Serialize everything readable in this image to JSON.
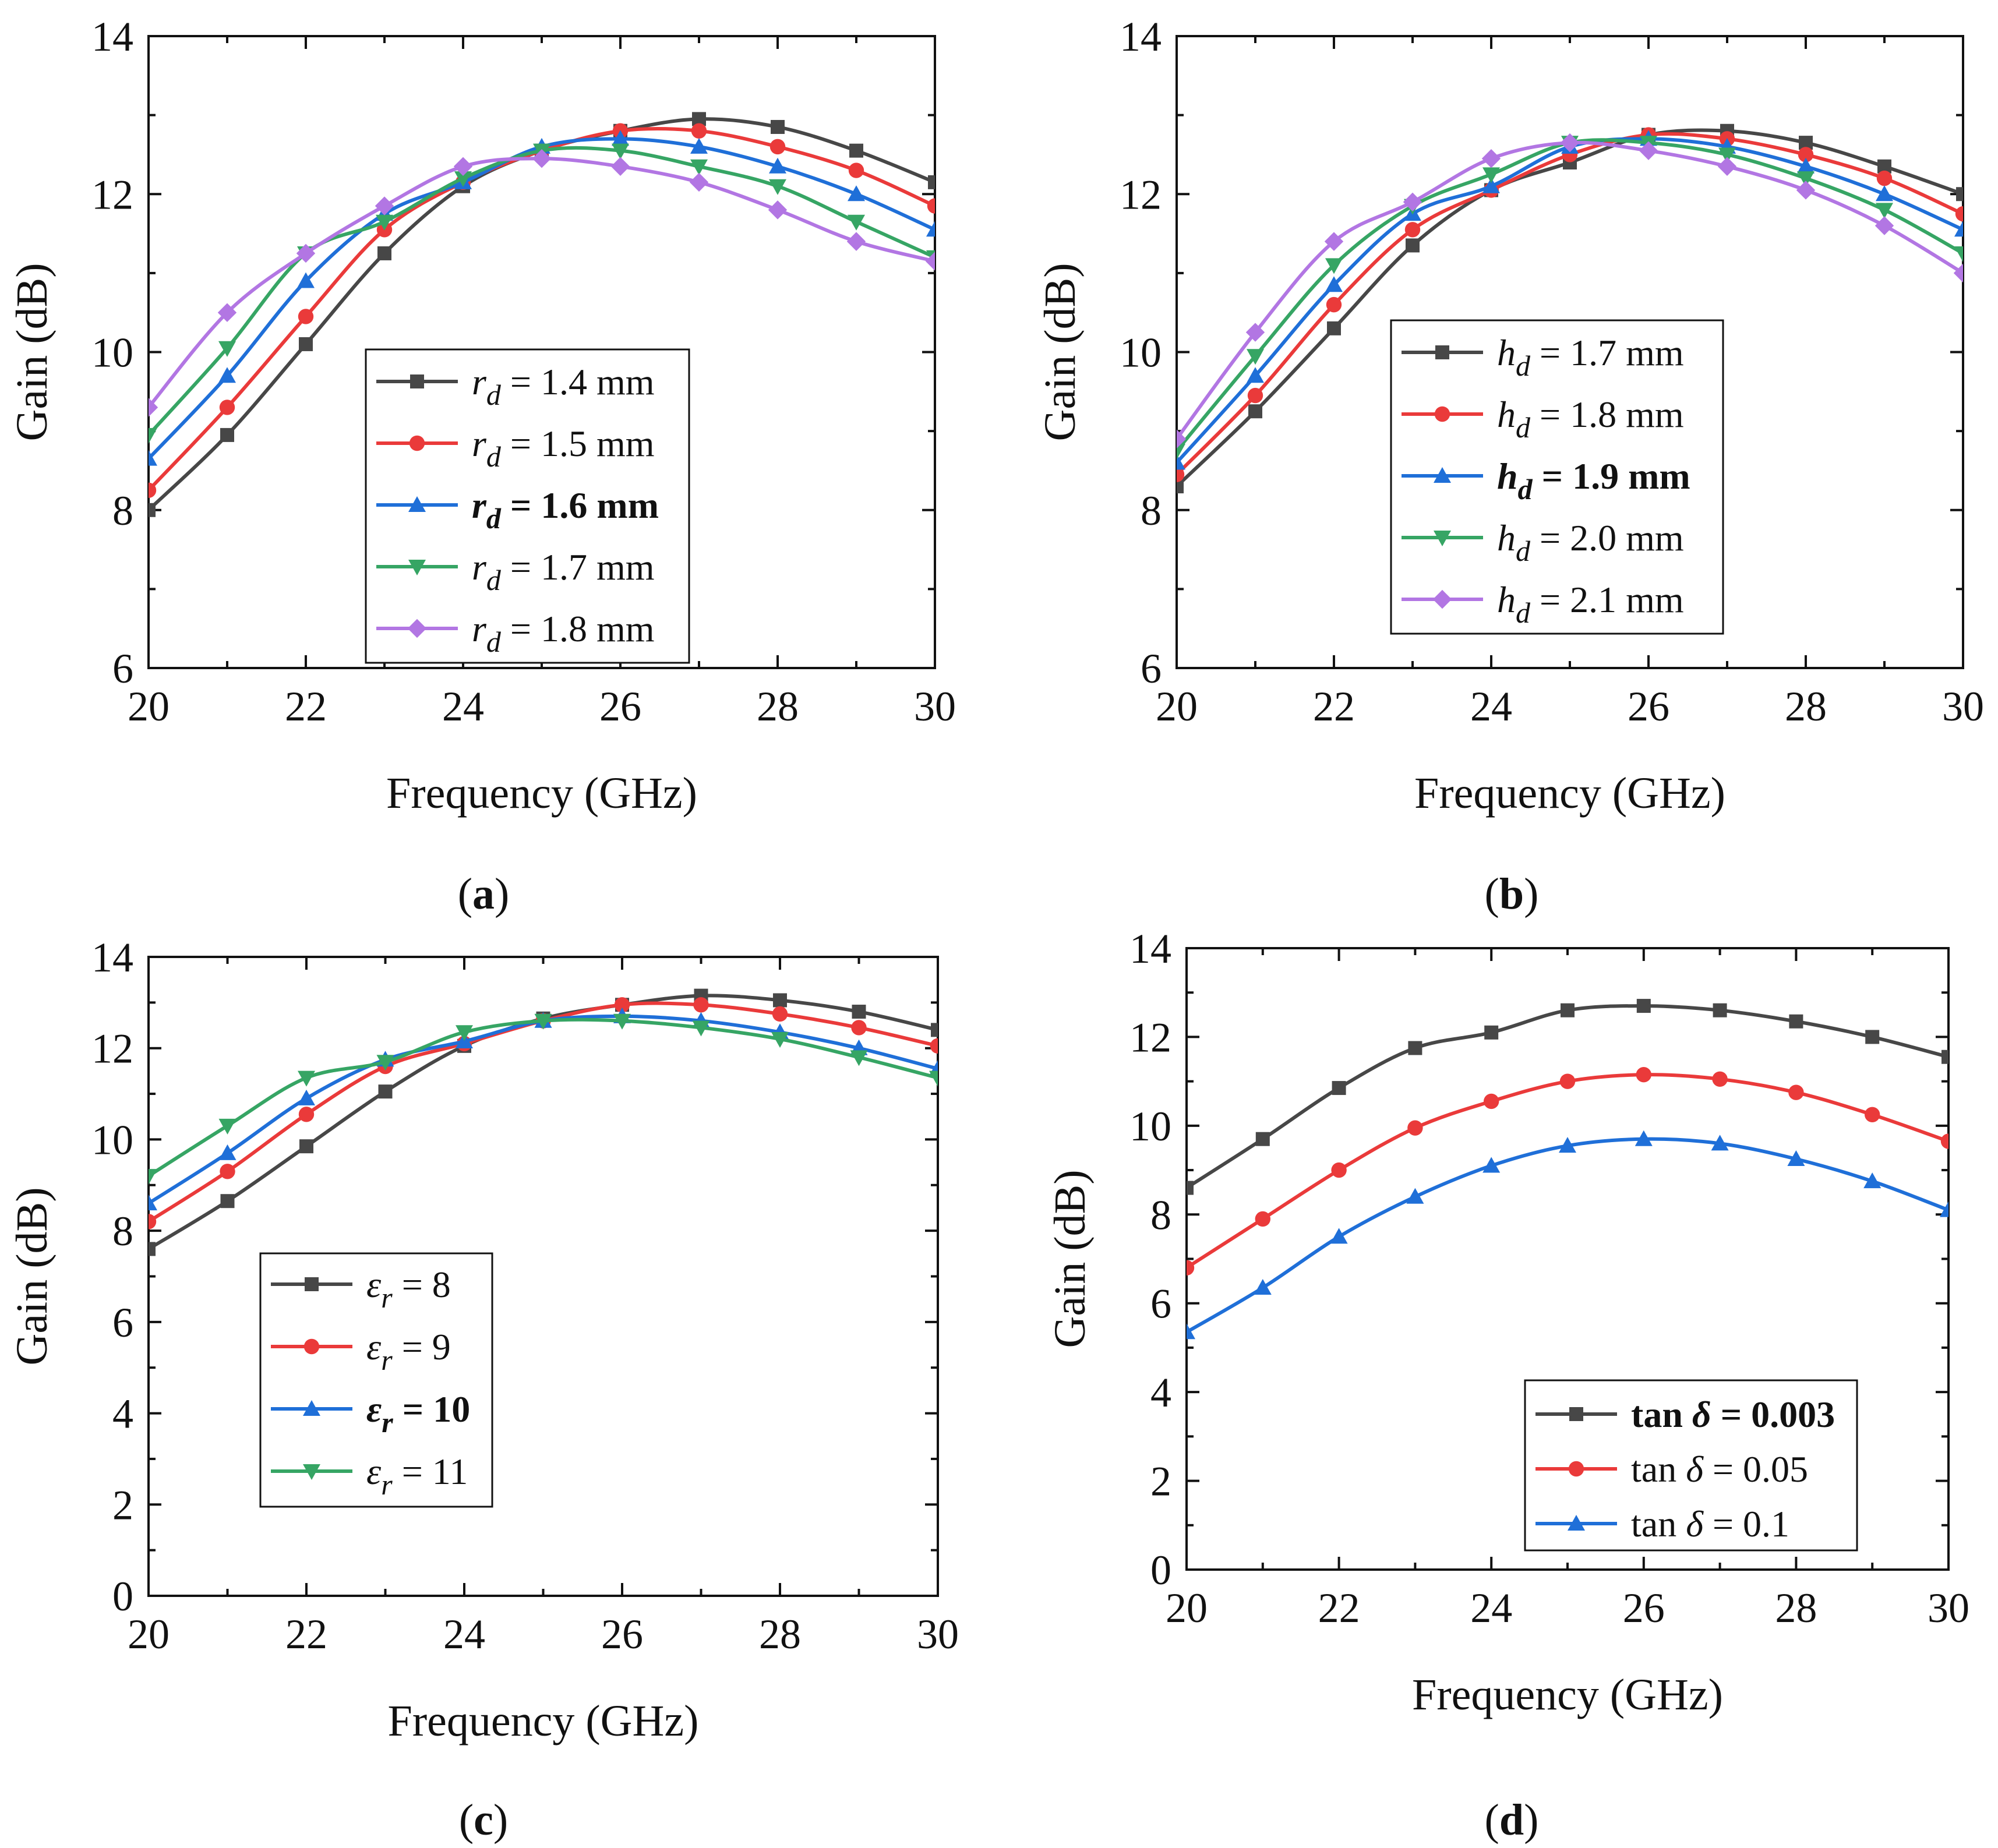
{
  "figure": {
    "panels": [
      {
        "caption_letter": "a"
      },
      {
        "caption_letter": "b"
      },
      {
        "caption_letter": "c"
      },
      {
        "caption_letter": "d"
      }
    ]
  },
  "colors": {
    "black": "#474747",
    "red": "#ea3a3a",
    "blue": "#1f6fd8",
    "green": "#36a564",
    "purple": "#b276e3",
    "frame": "#111111"
  },
  "chart_data": [
    {
      "type": "line",
      "panel": "a",
      "title": "",
      "xlabel": "Frequency (GHz)",
      "ylabel": "Gain (dB)",
      "xlim": [
        20,
        30
      ],
      "ylim": [
        6,
        14
      ],
      "xticks": [
        20,
        22,
        24,
        26,
        28,
        30
      ],
      "yticks": [
        6,
        8,
        10,
        12,
        14
      ],
      "legend_position": "center",
      "x": [
        20,
        21,
        22,
        23,
        24,
        25,
        26,
        27,
        28,
        29,
        30
      ],
      "series": [
        {
          "name": "r_d = 1.4 mm",
          "sym": "r",
          "sub": "d",
          "rest": " = 1.4 mm",
          "bold": false,
          "color": "black",
          "marker": "square",
          "values": [
            8.0,
            8.95,
            10.1,
            11.25,
            12.1,
            12.55,
            12.8,
            12.95,
            12.85,
            12.55,
            12.15
          ]
        },
        {
          "name": "r_d = 1.5 mm",
          "sym": "r",
          "sub": "d",
          "rest": " = 1.5 mm",
          "bold": false,
          "color": "red",
          "marker": "circle",
          "values": [
            8.25,
            9.3,
            10.45,
            11.55,
            12.15,
            12.55,
            12.8,
            12.8,
            12.6,
            12.3,
            11.85
          ]
        },
        {
          "name": "r_d = 1.6 mm",
          "sym": "r",
          "sub": "d",
          "rest": " = 1.6 mm",
          "bold": true,
          "color": "blue",
          "marker": "triangle-up",
          "values": [
            8.65,
            9.7,
            10.9,
            11.75,
            12.15,
            12.6,
            12.7,
            12.6,
            12.35,
            12.0,
            11.55
          ]
        },
        {
          "name": "r_d = 1.7 mm",
          "sym": "r",
          "sub": "d",
          "rest": " = 1.7 mm",
          "bold": false,
          "color": "green",
          "marker": "triangle-down",
          "values": [
            8.95,
            10.05,
            11.25,
            11.65,
            12.2,
            12.55,
            12.55,
            12.35,
            12.1,
            11.65,
            11.2
          ]
        },
        {
          "name": "r_d = 1.8 mm",
          "sym": "r",
          "sub": "d",
          "rest": " = 1.8 mm",
          "bold": false,
          "color": "purple",
          "marker": "diamond",
          "values": [
            9.3,
            10.5,
            11.25,
            11.85,
            12.35,
            12.45,
            12.35,
            12.15,
            11.8,
            11.4,
            11.15
          ]
        }
      ]
    },
    {
      "type": "line",
      "panel": "b",
      "title": "",
      "xlabel": "Frequency (GHz)",
      "ylabel": "Gain (dB)",
      "xlim": [
        20,
        30
      ],
      "ylim": [
        6,
        14
      ],
      "xticks": [
        20,
        22,
        24,
        26,
        28,
        30
      ],
      "yticks": [
        6,
        8,
        10,
        12,
        14
      ],
      "legend_position": "center",
      "x": [
        20,
        21,
        22,
        23,
        24,
        25,
        26,
        27,
        28,
        29,
        30
      ],
      "series": [
        {
          "name": "h_d = 1.7 mm",
          "sym": "h",
          "sub": "d",
          "rest": " = 1.7 mm",
          "bold": false,
          "color": "black",
          "marker": "square",
          "values": [
            8.3,
            9.25,
            10.3,
            11.35,
            12.05,
            12.4,
            12.75,
            12.8,
            12.65,
            12.35,
            12.0
          ]
        },
        {
          "name": "h_d = 1.8 mm",
          "sym": "h",
          "sub": "d",
          "rest": " = 1.8 mm",
          "bold": false,
          "color": "red",
          "marker": "circle",
          "values": [
            8.45,
            9.45,
            10.6,
            11.55,
            12.05,
            12.5,
            12.75,
            12.7,
            12.5,
            12.2,
            11.75
          ]
        },
        {
          "name": "h_d = 1.9 mm",
          "sym": "h",
          "sub": "d",
          "rest": " = 1.9 mm",
          "bold": true,
          "color": "blue",
          "marker": "triangle-up",
          "values": [
            8.6,
            9.7,
            10.85,
            11.75,
            12.1,
            12.6,
            12.7,
            12.6,
            12.35,
            12.0,
            11.55
          ]
        },
        {
          "name": "h_d = 2.0 mm",
          "sym": "h",
          "sub": "d",
          "rest": " = 2.0 mm",
          "bold": false,
          "color": "green",
          "marker": "triangle-down",
          "values": [
            8.75,
            9.95,
            11.1,
            11.85,
            12.25,
            12.65,
            12.65,
            12.5,
            12.2,
            11.8,
            11.25
          ]
        },
        {
          "name": "h_d = 2.1 mm",
          "sym": "h",
          "sub": "d",
          "rest": " = 2.1 mm",
          "bold": false,
          "color": "purple",
          "marker": "diamond",
          "values": [
            8.9,
            10.25,
            11.4,
            11.9,
            12.45,
            12.65,
            12.55,
            12.35,
            12.05,
            11.6,
            11.0
          ]
        }
      ]
    },
    {
      "type": "line",
      "panel": "c",
      "title": "",
      "xlabel": "Frequency (GHz)",
      "ylabel": "Gain (dB)",
      "xlim": [
        20,
        30
      ],
      "ylim": [
        0,
        14
      ],
      "xticks": [
        20,
        22,
        24,
        26,
        28,
        30
      ],
      "yticks": [
        0,
        2,
        4,
        6,
        8,
        10,
        12,
        14
      ],
      "legend_position": "lower-left",
      "x": [
        20,
        21,
        22,
        23,
        24,
        25,
        26,
        27,
        28,
        29,
        30
      ],
      "series": [
        {
          "name": "εr = 8",
          "sym": "ε",
          "sub": "r",
          "rest": " = 8",
          "bold": false,
          "color": "black",
          "marker": "square",
          "values": [
            7.6,
            8.65,
            9.85,
            11.05,
            12.05,
            12.65,
            12.95,
            13.15,
            13.05,
            12.8,
            12.4
          ]
        },
        {
          "name": "εr = 9",
          "sym": "ε",
          "sub": "r",
          "rest": " = 9",
          "bold": false,
          "color": "red",
          "marker": "circle",
          "values": [
            8.2,
            9.3,
            10.55,
            11.6,
            12.1,
            12.6,
            12.95,
            12.95,
            12.75,
            12.45,
            12.05
          ]
        },
        {
          "name": "εr = 10",
          "sym": "ε",
          "sub": "r",
          "rest": " = 10",
          "bold": true,
          "color": "blue",
          "marker": "triangle-up",
          "values": [
            8.6,
            9.7,
            10.9,
            11.75,
            12.15,
            12.6,
            12.7,
            12.6,
            12.35,
            12.0,
            11.55
          ]
        },
        {
          "name": "εr = 11",
          "sym": "ε",
          "sub": "r",
          "rest": " = 11",
          "bold": false,
          "color": "green",
          "marker": "triangle-down",
          "values": [
            9.2,
            10.3,
            11.35,
            11.7,
            12.35,
            12.6,
            12.6,
            12.45,
            12.2,
            11.8,
            11.35
          ]
        }
      ]
    },
    {
      "type": "line",
      "panel": "d",
      "title": "",
      "xlabel": "Frequency (GHz)",
      "ylabel": "Gain (dB)",
      "xlim": [
        20,
        30
      ],
      "ylim": [
        0,
        14
      ],
      "xticks": [
        20,
        22,
        24,
        26,
        28,
        30
      ],
      "yticks": [
        0,
        2,
        4,
        6,
        8,
        10,
        12,
        14
      ],
      "legend_position": "lower-right",
      "x": [
        20,
        21,
        22,
        23,
        24,
        25,
        26,
        27,
        28,
        29,
        30
      ],
      "series": [
        {
          "name": "tan δ = 0.003",
          "sym": "tan ",
          "sym2": "δ",
          "rest": " = 0.003",
          "bold": true,
          "color": "black",
          "marker": "square",
          "values": [
            8.6,
            9.7,
            10.85,
            11.75,
            12.1,
            12.6,
            12.7,
            12.6,
            12.35,
            12.0,
            11.55
          ]
        },
        {
          "name": "tan δ = 0.05",
          "sym": "tan ",
          "sym2": "δ",
          "rest": " = 0.05",
          "bold": false,
          "color": "red",
          "marker": "circle",
          "values": [
            6.8,
            7.9,
            9.0,
            9.95,
            10.55,
            11.0,
            11.15,
            11.05,
            10.75,
            10.25,
            9.65
          ]
        },
        {
          "name": "tan δ = 0.1",
          "sym": "tan ",
          "sym2": "δ",
          "rest": " = 0.1",
          "bold": false,
          "color": "blue",
          "marker": "triangle-up",
          "values": [
            5.35,
            6.35,
            7.5,
            8.4,
            9.1,
            9.55,
            9.7,
            9.6,
            9.25,
            8.75,
            8.1
          ]
        }
      ]
    }
  ]
}
